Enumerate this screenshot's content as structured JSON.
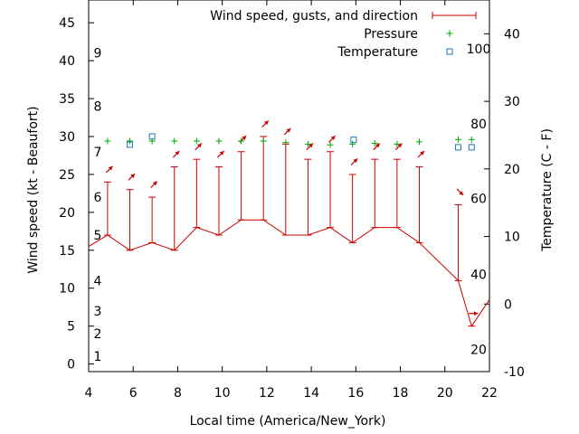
{
  "chart_data": {
    "type": "line",
    "xlabel": "Local time (America/New_York)",
    "ylabel_left": "Wind speed (kt - Beaufort)",
    "ylabel_right": "Temperature (C - F)",
    "xlim": [
      4,
      22
    ],
    "ylim_left": [
      -1,
      48
    ],
    "ylim_right": [
      -10,
      45
    ],
    "x_ticks": [
      4,
      6,
      8,
      10,
      12,
      14,
      16,
      18,
      20,
      22
    ],
    "y_ticks_left": [
      0,
      5,
      10,
      15,
      20,
      25,
      30,
      35,
      40,
      45
    ],
    "y_ticks_right": [
      -10,
      0,
      10,
      20,
      30,
      40
    ],
    "beaufort_labels": [
      {
        "text": "1",
        "knots": 1
      },
      {
        "text": "2",
        "knots": 4
      },
      {
        "text": "3",
        "knots": 7
      },
      {
        "text": "4",
        "knots": 11
      },
      {
        "text": "5",
        "knots": 17
      },
      {
        "text": "6",
        "knots": 22
      },
      {
        "text": "7",
        "knots": 28
      },
      {
        "text": "8",
        "knots": 34
      },
      {
        "text": "9",
        "knots": 41
      }
    ],
    "fahrenheit_labels": [
      {
        "text": "20",
        "celsius": -6.7
      },
      {
        "text": "40",
        "celsius": 4.4
      },
      {
        "text": "60",
        "celsius": 15.6
      },
      {
        "text": "80",
        "celsius": 26.7
      },
      {
        "text": "100",
        "celsius": 37.8
      }
    ],
    "legend": [
      {
        "label": "Wind speed, gusts, and direction",
        "color": "#cc0000",
        "symbol": "errorbar"
      },
      {
        "label": "Pressure",
        "color": "#00aa00",
        "symbol": "plus"
      },
      {
        "label": "Temperature",
        "color": "#1f77b4",
        "symbol": "square"
      }
    ],
    "wind": {
      "x": [
        4,
        4.85,
        5.85,
        6.85,
        7.85,
        8.85,
        9.85,
        10.85,
        11.85,
        12.85,
        13.85,
        14.85,
        15.85,
        16.85,
        17.85,
        18.85,
        20.6,
        21.2,
        22
      ],
      "speed": [
        15.5,
        17,
        15,
        16,
        15,
        18,
        17,
        19,
        19,
        17,
        17,
        18,
        16,
        18,
        18,
        16,
        11,
        5,
        8.5
      ],
      "gust": [
        null,
        24,
        23,
        22,
        26,
        27,
        26,
        28,
        30,
        29,
        27,
        28,
        25,
        27,
        27,
        26,
        21,
        null,
        null
      ],
      "direction_deg": [
        null,
        225,
        225,
        225,
        225,
        225,
        225,
        225,
        225,
        225,
        225,
        225,
        225,
        225,
        225,
        225,
        315,
        270,
        null
      ]
    },
    "pressure": {
      "x": [
        4.85,
        5.85,
        6.85,
        7.85,
        8.85,
        9.85,
        10.85,
        11.85,
        12.85,
        13.85,
        14.85,
        15.85,
        16.85,
        17.85,
        18.85,
        20.6,
        21.2
      ],
      "y": [
        29.4,
        29.4,
        29.4,
        29.4,
        29.4,
        29.4,
        29.4,
        29.4,
        29.2,
        29.0,
        28.9,
        29.0,
        29.1,
        29.0,
        29.3,
        29.6,
        29.6
      ]
    },
    "temperature": {
      "x": [
        5.85,
        6.85,
        15.9,
        20.6,
        21.2
      ],
      "y": [
        23.6,
        24.8,
        24.3,
        23.2,
        23.2
      ]
    }
  }
}
